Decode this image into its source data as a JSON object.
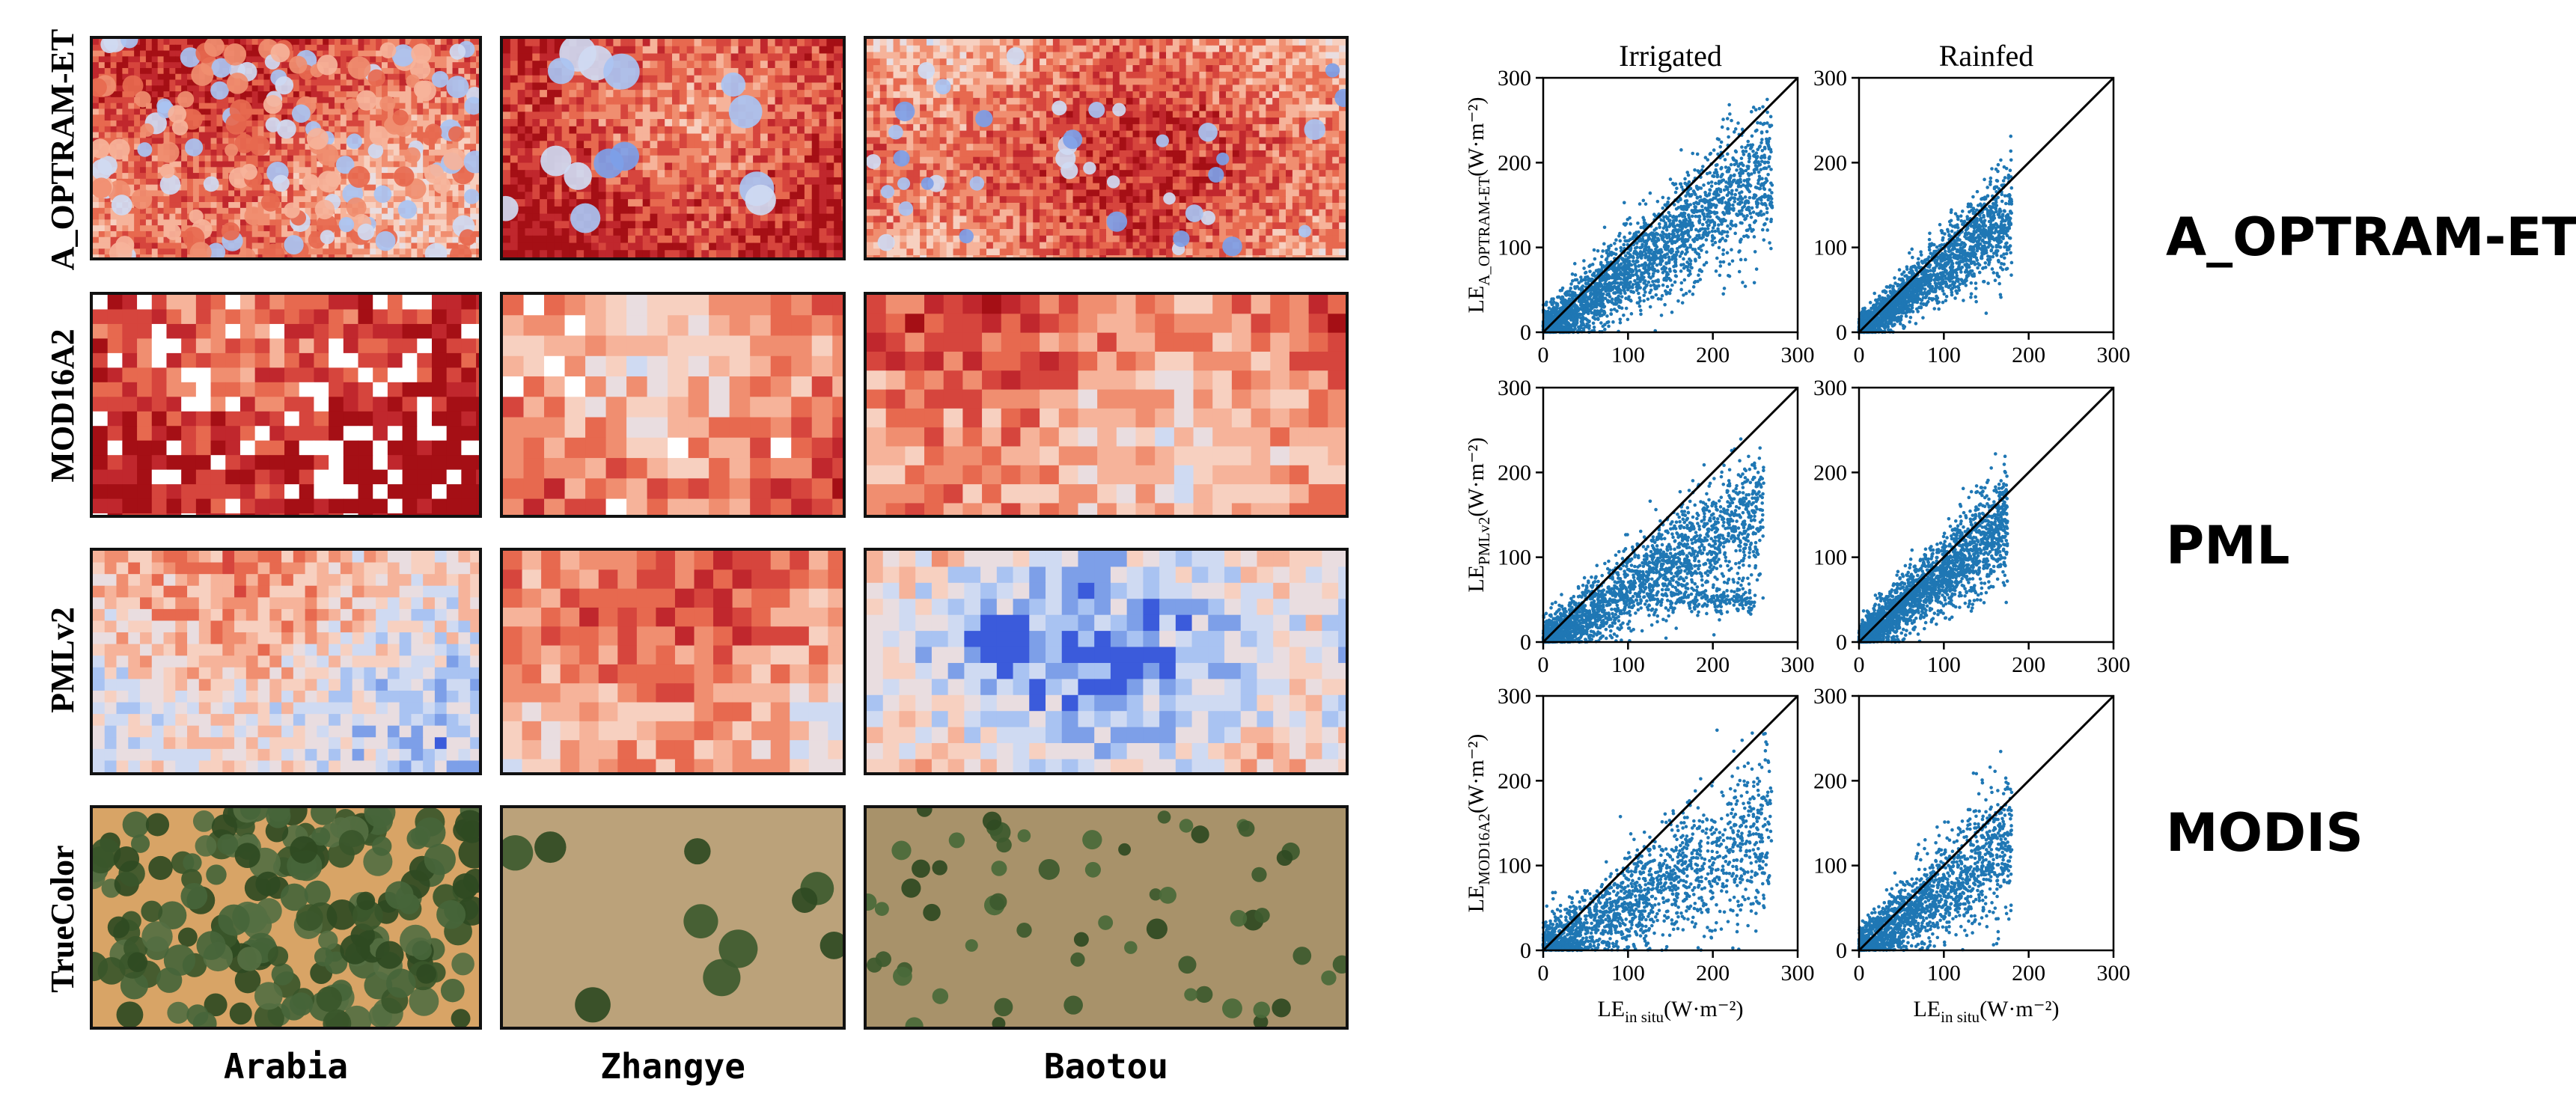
{
  "map_panel": {
    "row_labels": [
      "A_OPTRAM-ET",
      "MOD16A2",
      "PMLv2",
      "TrueColor"
    ],
    "column_labels": [
      "Arabia",
      "Zhangye",
      "Baotou"
    ]
  },
  "product_labels": [
    "A_OPTRAM-ET",
    "PML",
    "MODIS"
  ],
  "colors": {
    "scatter_point": "#1f77b4",
    "one_to_one_line": "#000000",
    "et_high": "#b2182b",
    "et_low": "#3b5bdb"
  },
  "chart_data": [
    {
      "type": "scatter",
      "row": "A_OPTRAM-ET",
      "title": "Irrigated",
      "ylabel_main": "LE",
      "ylabel_sub": "A_OPTRAM-ET",
      "ylabel_unit": "(W·m⁻²)",
      "xlim": [
        0,
        300
      ],
      "ylim": [
        0,
        300
      ],
      "xticks": [
        0,
        100,
        200,
        300
      ],
      "yticks": [
        0,
        100,
        200,
        300
      ],
      "one_to_one_line": true,
      "cloud": {
        "x_range": [
          0,
          270
        ],
        "slope": 0.72,
        "spread": 32,
        "approx_points": 2600
      }
    },
    {
      "type": "scatter",
      "row": "A_OPTRAM-ET",
      "title": "Rainfed",
      "xlim": [
        0,
        300
      ],
      "ylim": [
        0,
        300
      ],
      "xticks": [
        0,
        100,
        200,
        300
      ],
      "yticks": [
        0,
        100,
        200,
        300
      ],
      "one_to_one_line": true,
      "cloud": {
        "x_range": [
          0,
          180
        ],
        "slope": 0.78,
        "spread": 22,
        "approx_points": 2200
      }
    },
    {
      "type": "scatter",
      "row": "PML",
      "ylabel_main": "LE",
      "ylabel_sub": "PMLv2",
      "ylabel_unit": "(W·m⁻²)",
      "xlim": [
        0,
        300
      ],
      "ylim": [
        0,
        300
      ],
      "xticks": [
        0,
        100,
        200,
        300
      ],
      "yticks": [
        0,
        100,
        200,
        300
      ],
      "one_to_one_line": true,
      "cloud": {
        "x_range": [
          0,
          260
        ],
        "slope": 0.62,
        "spread": 30,
        "approx_points": 2400,
        "secondary_cluster": {
          "x_range": [
            150,
            250
          ],
          "y_center": 50
        }
      }
    },
    {
      "type": "scatter",
      "row": "PML",
      "xlim": [
        0,
        300
      ],
      "ylim": [
        0,
        300
      ],
      "xticks": [
        0,
        100,
        200,
        300
      ],
      "yticks": [
        0,
        100,
        200,
        300
      ],
      "one_to_one_line": true,
      "cloud": {
        "x_range": [
          0,
          175
        ],
        "slope": 0.82,
        "spread": 24,
        "approx_points": 2400
      }
    },
    {
      "type": "scatter",
      "row": "MODIS",
      "ylabel_main": "LE",
      "ylabel_sub": "MOD16A2",
      "ylabel_unit": "(W·m⁻²)",
      "xlabel_main": "LE",
      "xlabel_sub": "in situ",
      "xlabel_unit": "(W·m⁻²)",
      "xlim": [
        0,
        300
      ],
      "ylim": [
        0,
        300
      ],
      "xticks": [
        0,
        100,
        200,
        300
      ],
      "yticks": [
        0,
        100,
        200,
        300
      ],
      "one_to_one_line": true,
      "cloud": {
        "x_range": [
          0,
          270
        ],
        "slope": 0.55,
        "spread": 38,
        "approx_points": 1800
      }
    },
    {
      "type": "scatter",
      "row": "MODIS",
      "xlabel_main": "LE",
      "xlabel_sub": "in situ",
      "xlabel_unit": "(W·m⁻²)",
      "xlim": [
        0,
        300
      ],
      "ylim": [
        0,
        300
      ],
      "xticks": [
        0,
        100,
        200,
        300
      ],
      "yticks": [
        0,
        100,
        200,
        300
      ],
      "one_to_one_line": true,
      "cloud": {
        "x_range": [
          0,
          180
        ],
        "slope": 0.72,
        "spread": 32,
        "approx_points": 1700
      }
    }
  ]
}
